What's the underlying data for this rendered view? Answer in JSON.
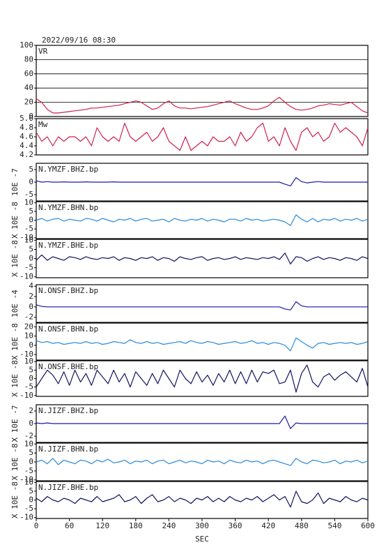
{
  "chart_data": {
    "type": "line",
    "title": "2022/09/16 08:30",
    "xlabel": "SEC",
    "xlim": [
      0,
      600
    ],
    "xticks": [
      0,
      60,
      120,
      180,
      240,
      300,
      360,
      420,
      480,
      540,
      600
    ],
    "x": [
      0,
      10,
      20,
      30,
      40,
      50,
      60,
      70,
      80,
      90,
      100,
      110,
      120,
      130,
      140,
      150,
      160,
      170,
      180,
      190,
      200,
      210,
      220,
      230,
      240,
      250,
      260,
      270,
      280,
      290,
      300,
      310,
      320,
      330,
      340,
      350,
      360,
      370,
      380,
      390,
      400,
      410,
      420,
      430,
      440,
      450,
      460,
      470,
      480,
      490,
      500,
      510,
      520,
      530,
      540,
      550,
      560,
      570,
      580,
      590,
      600
    ],
    "panels": [
      {
        "ylim": [
          0,
          100
        ],
        "yticks": [
          0,
          20,
          40,
          60,
          80,
          100
        ],
        "grid": true,
        "series": [
          {
            "name": "VR",
            "color": "#d01f4c",
            "values": [
              25,
              20,
              10,
              5,
              5,
              6,
              7,
              8,
              9,
              10,
              12,
              12,
              13,
              14,
              15,
              16,
              18,
              20,
              22,
              20,
              15,
              10,
              12,
              18,
              22,
              15,
              12,
              12,
              11,
              12,
              13,
              14,
              16,
              18,
              20,
              22,
              18,
              15,
              12,
              10,
              10,
              12,
              15,
              22,
              27,
              20,
              14,
              10,
              9,
              10,
              12,
              15,
              16,
              18,
              17,
              16,
              18,
              20,
              14,
              8,
              5
            ]
          }
        ]
      },
      {
        "ylim": [
          4.2,
          5.0
        ],
        "yticks": [
          4.2,
          4.4,
          4.6,
          4.8,
          {
            "value": 5,
            "label": "5.0"
          }
        ],
        "series": [
          {
            "name": "Mw",
            "color": "#d01f4c",
            "values": [
              4.7,
              4.5,
              4.6,
              4.4,
              4.6,
              4.5,
              4.6,
              4.6,
              4.5,
              4.6,
              4.4,
              4.8,
              4.6,
              4.5,
              4.6,
              4.5,
              4.9,
              4.6,
              4.5,
              4.6,
              4.7,
              4.5,
              4.6,
              4.8,
              4.5,
              4.4,
              4.3,
              4.6,
              4.3,
              4.4,
              4.5,
              4.4,
              4.6,
              4.5,
              4.5,
              4.6,
              4.4,
              4.7,
              4.5,
              4.6,
              4.8,
              4.9,
              4.5,
              4.6,
              4.4,
              4.8,
              4.5,
              4.3,
              4.7,
              4.8,
              4.6,
              4.7,
              4.5,
              4.6,
              4.9,
              4.7,
              4.8,
              4.7,
              4.6,
              4.4,
              4.8
            ]
          }
        ]
      },
      {
        "ylabel": "10E -7",
        "ylim": [
          -7.5,
          7.5
        ],
        "yticks": [
          -5,
          0,
          5
        ],
        "series": [
          {
            "name": "N.YMZF.BHZ.bp",
            "color": "#1a1aa8",
            "values": [
              0.5,
              0,
              0.2,
              0,
              0,
              0.1,
              0,
              0,
              0,
              0.1,
              0,
              0,
              0,
              0,
              0.1,
              0,
              0,
              0,
              0,
              0,
              0,
              0,
              0,
              0,
              0,
              0,
              0,
              0,
              0,
              0,
              0,
              0,
              0,
              0,
              0,
              0,
              0,
              0,
              0,
              0,
              0,
              0,
              0,
              0,
              0,
              -0.8,
              -1.5,
              1.8,
              0.2,
              -0.3,
              0,
              0.2,
              0,
              0,
              0,
              0,
              0,
              0,
              0,
              0,
              0
            ]
          }
        ]
      },
      {
        "ylabel": "X 10E -8",
        "ylim": [
          -10.5,
          10.5
        ],
        "yticks": [
          -10,
          -5,
          0,
          5,
          10
        ],
        "series": [
          {
            "name": "N.YMZF.BHN.bp",
            "color": "#2a8ad8",
            "values": [
              0,
              1,
              -0.5,
              0.5,
              1,
              -0.5,
              0.5,
              0,
              -0.5,
              1,
              0.5,
              -0.5,
              1,
              0,
              -1,
              0.5,
              0,
              1,
              -0.5,
              0.5,
              1,
              -0.5,
              0,
              0.5,
              -1,
              1,
              0,
              -0.5,
              0.5,
              0,
              1,
              -0.5,
              0.5,
              0,
              -1,
              0.5,
              0.5,
              -0.5,
              1,
              0,
              0.5,
              -0.5,
              0,
              0.5,
              0,
              -1,
              -3,
              3,
              0.5,
              -1,
              1,
              -1,
              0.5,
              0,
              1,
              -0.5,
              0.5,
              0,
              1,
              -0.5,
              0.5
            ]
          }
        ]
      },
      {
        "ylabel": "X 10E -8",
        "ylim": [
          -10.5,
          10.5
        ],
        "yticks": [
          -10,
          -5,
          0,
          5,
          10
        ],
        "series": [
          {
            "name": "N.YMZF.BHE.bp",
            "color": "#121262",
            "values": [
              -1,
              2,
              -1,
              1,
              0,
              -1,
              1,
              0.5,
              -0.5,
              1,
              0,
              -0.5,
              0.5,
              0,
              1,
              -1,
              0.5,
              0,
              -1,
              0.5,
              0,
              1,
              -1,
              0.5,
              0,
              -1.5,
              1,
              0,
              -0.5,
              0.5,
              1,
              -1,
              0,
              0.5,
              -0.5,
              0,
              1,
              -0.5,
              0.5,
              0,
              -0.5,
              0.5,
              0,
              1,
              -0.5,
              3,
              -3,
              1,
              0.5,
              -1.5,
              0,
              1,
              -0.5,
              0.5,
              0,
              -1,
              0.5,
              0,
              -1,
              1,
              0
            ]
          }
        ]
      },
      {
        "ylabel": "10E -4",
        "ylim": [
          -3,
          4.3
        ],
        "yticks": [
          -2,
          0,
          2,
          4
        ],
        "series": [
          {
            "name": "N.ONSF.BHZ.bp",
            "color": "#1a1aa8",
            "values": [
              0.4,
              0.1,
              0,
              0,
              0,
              0,
              0,
              0,
              0,
              0,
              0,
              0,
              0,
              0,
              0,
              0,
              0,
              0,
              0,
              0,
              0,
              0,
              0,
              0,
              0,
              0,
              0,
              0,
              0,
              0,
              0,
              0,
              0,
              0,
              0,
              0,
              0,
              0,
              0,
              0,
              0,
              0,
              0,
              0,
              0,
              -0.4,
              -0.6,
              1,
              0.2,
              0,
              0,
              0,
              0,
              0,
              0,
              0,
              0,
              0,
              0,
              0,
              0
            ]
          }
        ]
      },
      {
        "ylabel": "X 10E -8",
        "ylim": [
          -16,
          24
        ],
        "yticks": [
          -10,
          0,
          10,
          20
        ],
        "series": [
          {
            "name": "N.ONSF.BHN.bp",
            "color": "#2a8ad8",
            "values": [
              5,
              3,
              4,
              2,
              3,
              1,
              2,
              3,
              2,
              4,
              2,
              3,
              1,
              2,
              4,
              3,
              2,
              6,
              3,
              2,
              4,
              2,
              3,
              1,
              2,
              3,
              4,
              2,
              5,
              3,
              2,
              4,
              3,
              1,
              2,
              3,
              4,
              2,
              3,
              5,
              2,
              3,
              1,
              3,
              2,
              0,
              -6,
              8,
              4,
              0,
              -3,
              2,
              3,
              1,
              2,
              3,
              2,
              3,
              1,
              2,
              4
            ]
          }
        ]
      },
      {
        "ylabel": "X 10E -8",
        "ylim": [
          -10.5,
          10.5
        ],
        "yticks": [
          -10,
          -5,
          0,
          5,
          10
        ],
        "series": [
          {
            "name": "N.ONSF.BHE.bp",
            "color": "#121262",
            "values": [
              -5,
              0,
              5,
              2,
              -3,
              4,
              -4,
              5,
              -2,
              3,
              -4,
              5,
              1,
              -3,
              5,
              -2,
              3,
              -5,
              4,
              0,
              -4,
              3,
              -3,
              5,
              0,
              -5,
              5,
              0,
              -3,
              4,
              -2,
              2,
              -4,
              3,
              -2,
              5,
              -3,
              4,
              -3,
              5,
              -2,
              4,
              3,
              5,
              -3,
              -2,
              5,
              -8,
              3,
              8,
              -2,
              -5,
              1,
              3,
              -1,
              2,
              4,
              1,
              -2,
              6,
              -5
            ]
          }
        ]
      },
      {
        "ylabel": "X 10E -7",
        "ylim": [
          -3,
          3
        ],
        "yticks": [
          -2,
          0,
          2
        ],
        "series": [
          {
            "name": "N.JIZF.BHZ.bp",
            "color": "#1a1aa8",
            "values": [
              0.1,
              0,
              0.1,
              0,
              0,
              0,
              0,
              0,
              0,
              0,
              0,
              0,
              0,
              0,
              0,
              0,
              0,
              0,
              0,
              0,
              0,
              0,
              0,
              0,
              0,
              0,
              0,
              0,
              0,
              0,
              0,
              0,
              0,
              0,
              0,
              0,
              0,
              0,
              0,
              0,
              0,
              0,
              0,
              0,
              0,
              1.2,
              -0.8,
              0.1,
              0,
              0,
              0,
              0,
              0,
              0,
              0,
              0,
              0,
              0,
              0,
              0,
              0
            ]
          }
        ]
      },
      {
        "ylabel": "X 10E -8",
        "ylim": [
          -10.5,
          10.5
        ],
        "yticks": [
          -10,
          -5,
          0,
          5,
          10
        ],
        "series": [
          {
            "name": "N.JIZF.BHN.bp",
            "color": "#2a8ad8",
            "values": [
              0,
              1,
              -1,
              2,
              -1.5,
              1,
              0,
              -1,
              1,
              0.5,
              -1,
              1,
              0,
              1.5,
              -0.5,
              0,
              1,
              -1,
              0.5,
              0,
              1,
              -1,
              0.5,
              1,
              -1,
              0,
              1,
              -0.5,
              0.5,
              0,
              -1,
              1,
              0,
              0.5,
              -1,
              1,
              0,
              -0.5,
              1,
              0,
              0.5,
              -1,
              0.5,
              1,
              0,
              -1,
              -2,
              2,
              0,
              -1,
              1,
              0.5,
              -0.5,
              0,
              1,
              -1,
              0.5,
              0,
              1,
              -0.5,
              0.5
            ]
          }
        ]
      },
      {
        "ylabel": "X 10E -8",
        "ylim": [
          -10.5,
          10.5
        ],
        "yticks": [
          -10,
          -5,
          0,
          5,
          10
        ],
        "series": [
          {
            "name": "N.JIZF.BHE.bp",
            "color": "#121262",
            "values": [
              1,
              -1,
              2,
              0,
              -1,
              1,
              0,
              -2,
              1,
              0,
              -1,
              2,
              -1,
              0,
              1,
              3,
              -1,
              0,
              2,
              -2,
              1,
              3,
              -1,
              0,
              2,
              -1,
              1,
              0,
              -2,
              1,
              0,
              2,
              -1,
              1,
              -1,
              2,
              0,
              -1,
              1,
              0,
              2,
              -1,
              1,
              3,
              0,
              2,
              -4,
              5,
              -1,
              -2,
              0,
              4,
              -2,
              1,
              0,
              -1,
              2,
              0,
              -1,
              1,
              0
            ]
          }
        ]
      }
    ]
  }
}
